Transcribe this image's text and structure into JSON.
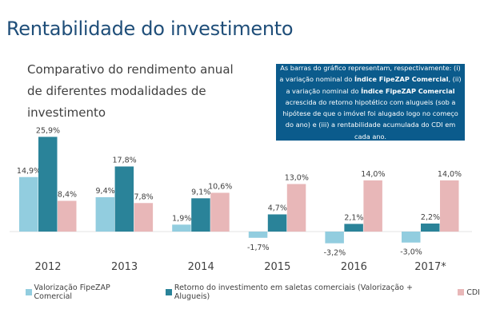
{
  "title": "Rentabilidade do investimento",
  "subtitle": "Comparativo do rendimento anual de diferentes modalidades de investimento",
  "note": {
    "part1": "As barras do gráfico representam, respectivamente: (i) a variação nominal do ",
    "bold1": "Índice FipeZAP Comercial",
    "part2": ", (ii) a variação nominal do ",
    "bold2": "Índice FipeZAP Comercial",
    "part3": " acrescida do retorno hipotético com alugueis (sob a hipótese de que o imóvel foi alugado logo no começo do ano) e (iii) a rentabilidade acumulada do CDI em cada ano."
  },
  "chart_data": {
    "type": "bar",
    "categories": [
      "2012",
      "2013",
      "2014",
      "2015",
      "2016",
      "2017*"
    ],
    "series": [
      {
        "name": "Valorização FipeZAP Comercial",
        "color": "#92cddf",
        "values": [
          14.9,
          9.4,
          1.9,
          -1.7,
          -3.2,
          -3.0
        ],
        "labels": [
          "14,9%",
          "9,4%",
          "1,9%",
          "-1,7%",
          "-3,2%",
          "-3,0%"
        ]
      },
      {
        "name": "Retorno do investimento em saletas comerciais (Valorização + Alugueis)",
        "color": "#2a8399",
        "values": [
          25.9,
          17.8,
          9.1,
          4.7,
          2.1,
          2.2
        ],
        "labels": [
          "25,9%",
          "17,8%",
          "9,1%",
          "4,7%",
          "2,1%",
          "2,2%"
        ]
      },
      {
        "name": "CDI",
        "color": "#e8b7b8",
        "values": [
          8.4,
          7.8,
          10.6,
          13.0,
          14.0,
          14.0
        ],
        "labels": [
          "8,4%",
          "7,8%",
          "10,6%",
          "13,0%",
          "14,0%",
          "14,0%"
        ]
      }
    ],
    "legend": "bottom",
    "grid": false
  }
}
